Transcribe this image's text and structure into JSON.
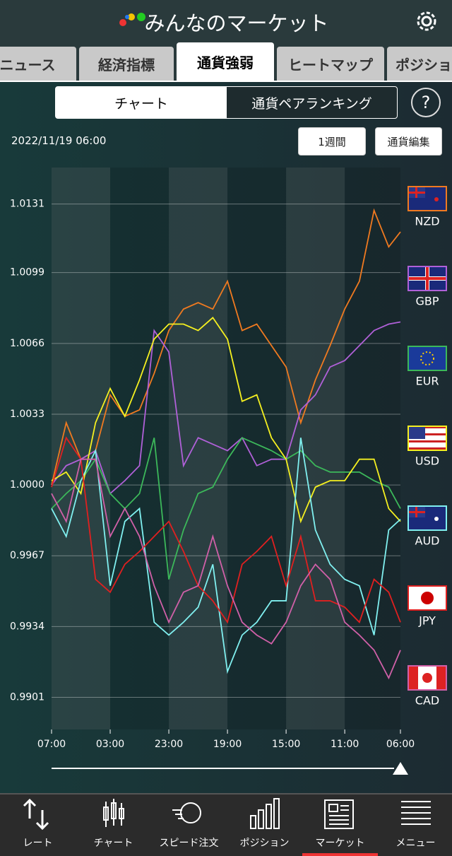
{
  "header": {
    "title": "みんなのマーケット"
  },
  "tabs": [
    "ニュース",
    "経済指標",
    "通貨強弱",
    "ヒートマップ",
    "ポジション"
  ],
  "segments": [
    "チャート",
    "通貨ペアランキング"
  ],
  "help": "?",
  "date": "2022/11/19 06:00",
  "buttons": [
    "1週間",
    "通貨編集"
  ],
  "chart_data": {
    "type": "line",
    "x": [
      0,
      5,
      10,
      15,
      20,
      25,
      30,
      35,
      40,
      45,
      50,
      55,
      60,
      65,
      70,
      75,
      80,
      85,
      90,
      95,
      100,
      105,
      110,
      115,
      119
    ],
    "xlim": [
      0,
      119
    ],
    "xticks": [
      {
        "value": 0,
        "label": "07:00"
      },
      {
        "value": 20,
        "label": "03:00"
      },
      {
        "value": 40,
        "label": "23:00"
      },
      {
        "value": 60,
        "label": "19:00"
      },
      {
        "value": 80,
        "label": "15:00"
      },
      {
        "value": 100,
        "label": "11:00"
      },
      {
        "value": 119,
        "label": "06:00"
      }
    ],
    "ylim": [
      0.9886,
      1.0148
    ],
    "yticks": [
      1.0131,
      1.0099,
      1.0066,
      1.0033,
      {
        "value": 1,
        "label": "1.0000"
      },
      0.9967,
      0.9934,
      0.9901
    ],
    "grid": true,
    "series": [
      {
        "name": "NZD",
        "color": "#f07a20",
        "values": [
          1.0,
          1.0029,
          1.0012,
          1.0016,
          1.0042,
          1.0032,
          1.0035,
          1.0052,
          1.0072,
          1.0082,
          1.0085,
          1.0082,
          1.0095,
          1.0072,
          1.0075,
          1.0065,
          1.0055,
          1.0029,
          1.0049,
          1.0065,
          1.0082,
          1.0095,
          1.0128,
          1.0111,
          1.0118
        ]
      },
      {
        "name": "GBP",
        "color": "#b060d8",
        "values": [
          1.0,
          1.0009,
          1.0012,
          1.0016,
          0.9996,
          1.0002,
          1.0009,
          1.0072,
          1.0062,
          1.0009,
          1.0022,
          1.0019,
          1.0016,
          1.0022,
          1.0009,
          1.0012,
          1.0012,
          1.0035,
          1.0042,
          1.0055,
          1.0058,
          1.0065,
          1.0072,
          1.0075,
          1.0076
        ]
      },
      {
        "name": "EUR",
        "color": "#3cb85a",
        "values": [
          0.9989,
          0.9996,
          1.0002,
          1.0012,
          0.9996,
          0.9989,
          0.9996,
          1.0022,
          0.9956,
          0.9979,
          0.9996,
          0.9999,
          1.0012,
          1.0022,
          1.0019,
          1.0016,
          1.0012,
          1.0016,
          1.0009,
          1.0006,
          1.0006,
          1.0006,
          1.0002,
          0.9999,
          0.9989
        ]
      },
      {
        "name": "USD",
        "color": "#f5f020",
        "values": [
          1.0002,
          1.0006,
          0.9996,
          1.0029,
          1.0045,
          1.0032,
          1.0049,
          1.0068,
          1.0075,
          1.0075,
          1.0072,
          1.0078,
          1.0068,
          1.0039,
          1.0042,
          1.0022,
          1.0012,
          0.9983,
          0.9999,
          1.0002,
          1.0002,
          1.0012,
          1.0012,
          0.9989,
          0.9983
        ]
      },
      {
        "name": "AUD",
        "color": "#80f0f0",
        "values": [
          0.9989,
          0.9976,
          1.0002,
          1.0016,
          0.9953,
          0.9983,
          0.9989,
          0.9936,
          0.993,
          0.9936,
          0.9943,
          0.9963,
          0.9913,
          0.993,
          0.9936,
          0.9946,
          0.9946,
          1.0022,
          0.9979,
          0.9963,
          0.9956,
          0.9953,
          0.993,
          0.9979,
          0.9984
        ]
      },
      {
        "name": "JPY",
        "color": "#e02020",
        "values": [
          0.9999,
          1.0022,
          1.0012,
          0.9956,
          0.995,
          0.9963,
          0.9969,
          0.9976,
          0.9983,
          0.9969,
          0.9953,
          0.9946,
          0.9936,
          0.9963,
          0.9969,
          0.9976,
          0.9953,
          0.9976,
          0.9946,
          0.9946,
          0.9943,
          0.9936,
          0.9956,
          0.995,
          0.9936
        ]
      },
      {
        "name": "CAD",
        "color": "#d060a8",
        "values": [
          0.9996,
          0.9983,
          1.0012,
          1.0012,
          0.9976,
          0.9989,
          0.9976,
          0.9953,
          0.9936,
          0.995,
          0.9953,
          0.9976,
          0.9953,
          0.9936,
          0.993,
          0.9926,
          0.9936,
          0.9953,
          0.9963,
          0.9956,
          0.9936,
          0.993,
          0.9923,
          0.991,
          0.9923
        ]
      }
    ]
  },
  "nav": [
    "レート",
    "チャート",
    "スピード注文",
    "ポジション",
    "マーケット",
    "メニュー"
  ]
}
